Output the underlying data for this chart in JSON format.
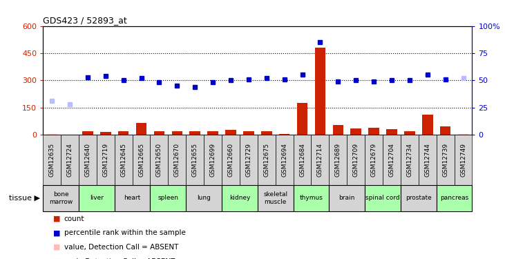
{
  "title": "GDS423 / 52893_at",
  "samples": [
    "GSM12635",
    "GSM12724",
    "GSM12640",
    "GSM12719",
    "GSM12645",
    "GSM12665",
    "GSM12650",
    "GSM12670",
    "GSM12655",
    "GSM12699",
    "GSM12660",
    "GSM12729",
    "GSM12675",
    "GSM12694",
    "GSM12684",
    "GSM12714",
    "GSM12689",
    "GSM12709",
    "GSM12679",
    "GSM12704",
    "GSM12734",
    "GSM12744",
    "GSM12739",
    "GSM12749"
  ],
  "bar_values": [
    5,
    0,
    20,
    15,
    20,
    65,
    20,
    20,
    20,
    20,
    25,
    20,
    20,
    5,
    175,
    480,
    55,
    35,
    40,
    30,
    20,
    110,
    45,
    5
  ],
  "dot_pct": [
    31,
    28,
    53,
    54,
    50,
    52,
    48,
    45,
    44,
    48,
    50,
    51,
    52,
    51,
    55,
    85,
    49,
    50,
    49,
    50,
    50,
    55,
    51,
    52
  ],
  "absent_bar_indices": [
    0,
    23
  ],
  "absent_dot_indices": [
    0,
    1,
    23
  ],
  "tissues": [
    {
      "label": "bone\nmarrow",
      "start": 0,
      "end": 2,
      "color": "#d4d4d4"
    },
    {
      "label": "liver",
      "start": 2,
      "end": 4,
      "color": "#aaffaa"
    },
    {
      "label": "heart",
      "start": 4,
      "end": 6,
      "color": "#d4d4d4"
    },
    {
      "label": "spleen",
      "start": 6,
      "end": 8,
      "color": "#aaffaa"
    },
    {
      "label": "lung",
      "start": 8,
      "end": 10,
      "color": "#d4d4d4"
    },
    {
      "label": "kidney",
      "start": 10,
      "end": 12,
      "color": "#aaffaa"
    },
    {
      "label": "skeletal\nmuscle",
      "start": 12,
      "end": 14,
      "color": "#d4d4d4"
    },
    {
      "label": "thymus",
      "start": 14,
      "end": 16,
      "color": "#aaffaa"
    },
    {
      "label": "brain",
      "start": 16,
      "end": 18,
      "color": "#d4d4d4"
    },
    {
      "label": "spinal cord",
      "start": 18,
      "end": 20,
      "color": "#aaffaa"
    },
    {
      "label": "prostate",
      "start": 20,
      "end": 22,
      "color": "#d4d4d4"
    },
    {
      "label": "pancreas",
      "start": 22,
      "end": 24,
      "color": "#aaffaa"
    }
  ],
  "ylim_left": [
    0,
    600
  ],
  "ylim_right": [
    0,
    100
  ],
  "yticks_left": [
    0,
    150,
    300,
    450,
    600
  ],
  "yticks_right": [
    0,
    25,
    50,
    75,
    100
  ],
  "bar_color": "#cc2200",
  "dot_color": "#0000cc",
  "absent_bar_color": "#ffbbbb",
  "absent_dot_color": "#bbbbff",
  "legend_items": [
    {
      "color": "#cc2200",
      "label": "count"
    },
    {
      "color": "#0000cc",
      "label": "percentile rank within the sample"
    },
    {
      "color": "#ffbbbb",
      "label": "value, Detection Call = ABSENT"
    },
    {
      "color": "#bbbbff",
      "label": "rank, Detection Call = ABSENT"
    }
  ]
}
